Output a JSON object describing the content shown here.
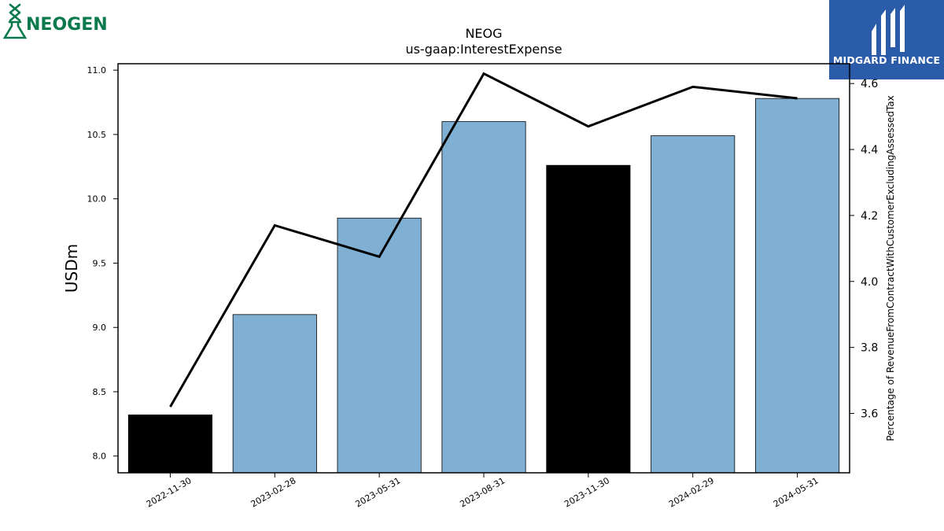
{
  "branding": {
    "left_logo_text": "NEOGEN",
    "right_logo_text": "MIDGARD FINANCE",
    "colors": {
      "neogen_green": "#0a7a4c",
      "midgard_blue": "#2a5caa"
    }
  },
  "chart_data": {
    "type": "bar",
    "title": "NEOG",
    "subtitle": "us-gaap:InterestExpense",
    "ylabel": "USDm",
    "y2label": "Percentage of RevenueFromContractWithCustomerExcludingAssessedTax",
    "categories": [
      "2022-11-30",
      "2023-02-28",
      "2023-05-31",
      "2023-08-31",
      "2023-11-30",
      "2024-02-29",
      "2024-05-31"
    ],
    "series": [
      {
        "type": "bar",
        "axis": "left",
        "values": [
          8.32,
          9.1,
          9.85,
          10.6,
          10.26,
          10.49,
          10.78
        ],
        "colors": [
          "#000000",
          "#7fb0d4",
          "#7fb0d4",
          "#7fb0d4",
          "#000000",
          "#7fb0d4",
          "#7fb0d4"
        ]
      },
      {
        "type": "line",
        "axis": "right",
        "values": [
          3.62,
          4.17,
          4.075,
          4.63,
          4.47,
          4.59,
          4.555
        ],
        "color": "#000000"
      }
    ],
    "ylim": [
      7.87,
      11.05
    ],
    "y_ticks": [
      "8.0",
      "8.5",
      "9.0",
      "9.5",
      "10.0",
      "10.5",
      "11.0"
    ],
    "y2lim": [
      3.42,
      4.66
    ],
    "y2_ticks": [
      "3.6",
      "3.8",
      "4.0",
      "4.2",
      "4.4",
      "4.6"
    ],
    "grid": false,
    "legend": "none"
  }
}
